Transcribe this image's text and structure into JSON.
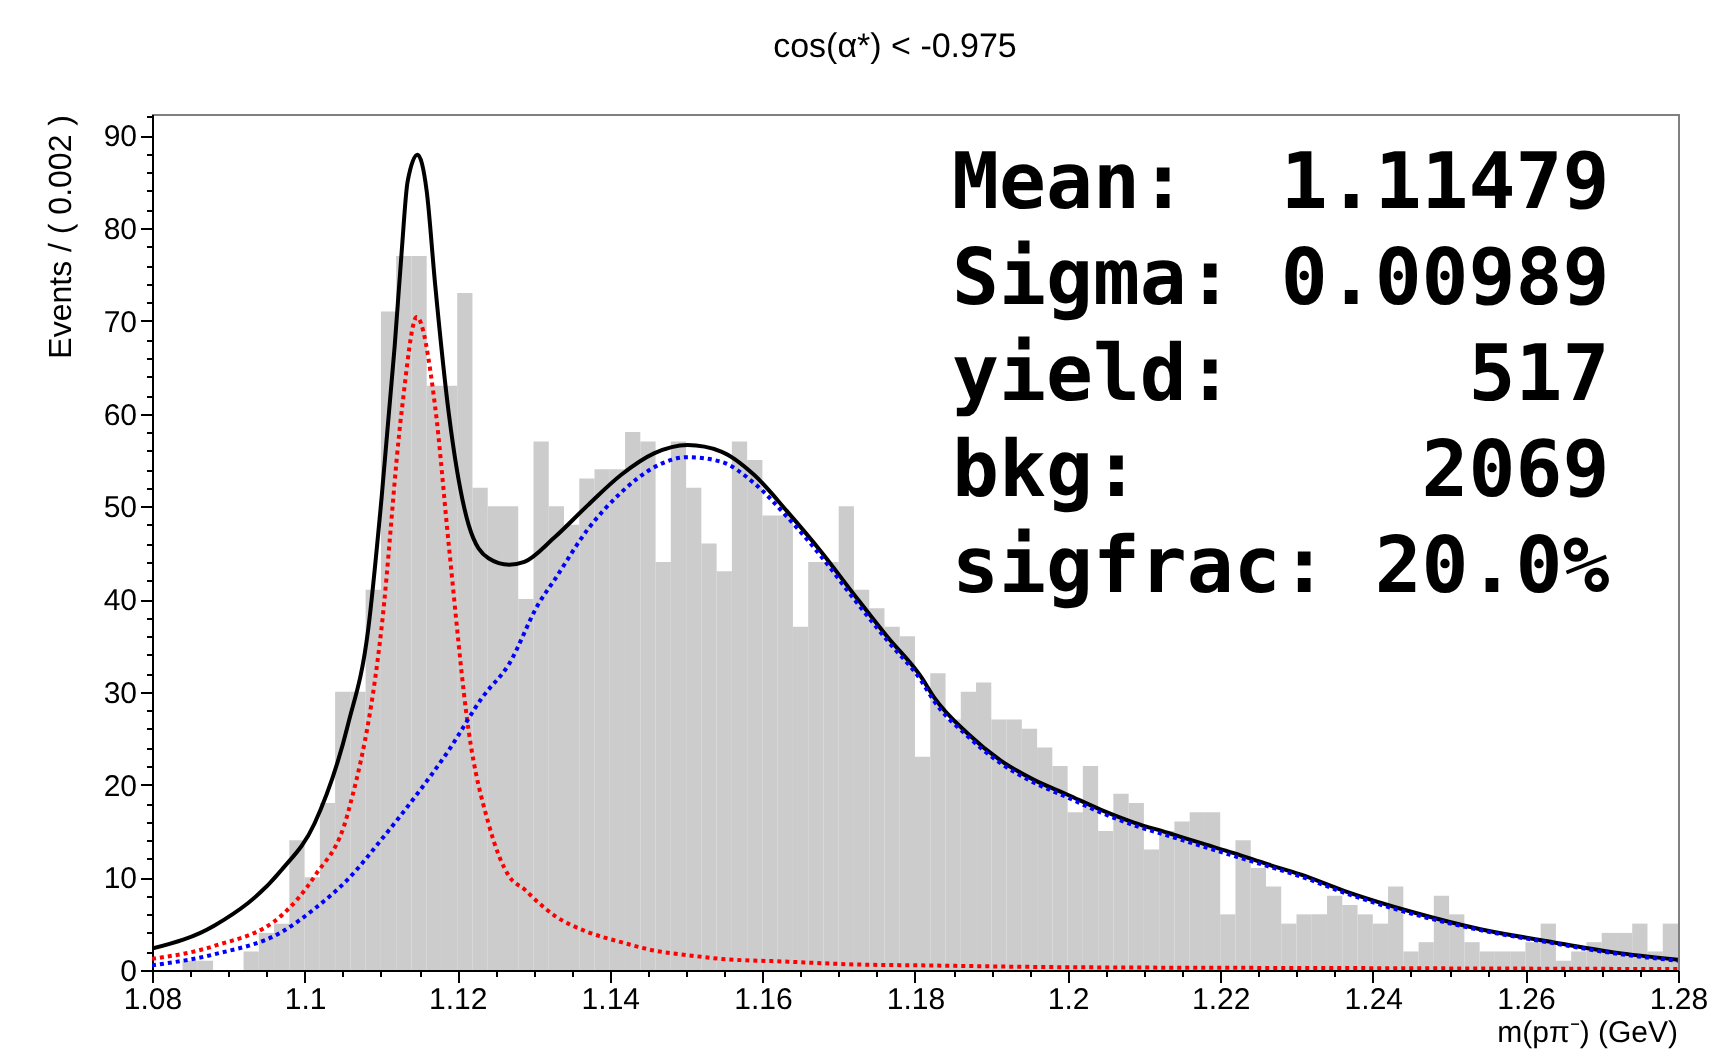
{
  "chart_data": {
    "type": "histogram",
    "title": "cos(α*) < -0.975",
    "xlabel": "m(pπ⁻) (GeV)",
    "ylabel": "Events / ( 0.002 )",
    "annotations": [
      "Mean:  1.11479",
      "Sigma: 0.00989",
      "yield:     517",
      "bkg:      2069",
      "sigfrac: 20.0%"
    ],
    "xlim": [
      1.08,
      1.28
    ],
    "ylim": [
      0,
      92.3
    ],
    "xticks": [
      1.08,
      {
        "value": 1.085,
        "label": null
      },
      {
        "value": 1.09,
        "label": null
      },
      {
        "value": 1.095,
        "label": null
      },
      1.1,
      {
        "value": 1.105,
        "label": null
      },
      {
        "value": 1.11,
        "label": null
      },
      {
        "value": 1.115,
        "label": null
      },
      1.12,
      {
        "value": 1.125,
        "label": null
      },
      {
        "value": 1.13,
        "label": null
      },
      {
        "value": 1.135,
        "label": null
      },
      1.14,
      {
        "value": 1.145,
        "label": null
      },
      {
        "value": 1.15,
        "label": null
      },
      {
        "value": 1.155,
        "label": null
      },
      1.16,
      {
        "value": 1.165,
        "label": null
      },
      {
        "value": 1.17,
        "label": null
      },
      {
        "value": 1.175,
        "label": null
      },
      1.18,
      {
        "value": 1.185,
        "label": null
      },
      {
        "value": 1.19,
        "label": null
      },
      {
        "value": 1.195,
        "label": null
      },
      1.2,
      {
        "value": 1.205,
        "label": null
      },
      {
        "value": 1.21,
        "label": null
      },
      {
        "value": 1.215,
        "label": null
      },
      1.22,
      {
        "value": 1.225,
        "label": null
      },
      {
        "value": 1.23,
        "label": null
      },
      {
        "value": 1.235,
        "label": null
      },
      1.24,
      {
        "value": 1.245,
        "label": null
      },
      {
        "value": 1.25,
        "label": null
      },
      {
        "value": 1.255,
        "label": null
      },
      1.26,
      {
        "value": 1.265,
        "label": null
      },
      {
        "value": 1.27,
        "label": null
      },
      {
        "value": 1.275,
        "label": null
      },
      1.28
    ],
    "yticks": [
      0,
      {
        "value": 2,
        "label": null
      },
      {
        "value": 4,
        "label": null
      },
      {
        "value": 6,
        "label": null
      },
      {
        "value": 8,
        "label": null
      },
      10,
      {
        "value": 12,
        "label": null
      },
      {
        "value": 14,
        "label": null
      },
      {
        "value": 16,
        "label": null
      },
      {
        "value": 18,
        "label": null
      },
      20,
      {
        "value": 22,
        "label": null
      },
      {
        "value": 24,
        "label": null
      },
      {
        "value": 26,
        "label": null
      },
      {
        "value": 28,
        "label": null
      },
      30,
      {
        "value": 32,
        "label": null
      },
      {
        "value": 34,
        "label": null
      },
      {
        "value": 36,
        "label": null
      },
      {
        "value": 38,
        "label": null
      },
      40,
      {
        "value": 42,
        "label": null
      },
      {
        "value": 44,
        "label": null
      },
      {
        "value": 46,
        "label": null
      },
      {
        "value": 48,
        "label": null
      },
      50,
      {
        "value": 52,
        "label": null
      },
      {
        "value": 54,
        "label": null
      },
      {
        "value": 56,
        "label": null
      },
      {
        "value": 58,
        "label": null
      },
      60,
      {
        "value": 62,
        "label": null
      },
      {
        "value": 64,
        "label": null
      },
      {
        "value": 66,
        "label": null
      },
      {
        "value": 68,
        "label": null
      },
      70,
      {
        "value": 72,
        "label": null
      },
      {
        "value": 74,
        "label": null
      },
      {
        "value": 76,
        "label": null
      },
      {
        "value": 78,
        "label": null
      },
      80,
      {
        "value": 82,
        "label": null
      },
      {
        "value": 84,
        "label": null
      },
      {
        "value": 86,
        "label": null
      },
      {
        "value": 88,
        "label": null
      },
      90,
      {
        "value": 92,
        "label": null
      }
    ],
    "color": "#cccccc",
    "bins": [
      1.08,
      1.082,
      1.084,
      1.086,
      1.088,
      1.09,
      1.092,
      1.094,
      1.096,
      1.098,
      1.1,
      1.102,
      1.104,
      1.106,
      1.108,
      1.11,
      1.112,
      1.114,
      1.116,
      1.118,
      1.12,
      1.122,
      1.124,
      1.126,
      1.128,
      1.13,
      1.132,
      1.134,
      1.136,
      1.138,
      1.14,
      1.142,
      1.144,
      1.146,
      1.148,
      1.15,
      1.152,
      1.154,
      1.156,
      1.158,
      1.16,
      1.162,
      1.164,
      1.166,
      1.168,
      1.17,
      1.172,
      1.174,
      1.176,
      1.178,
      1.18,
      1.182,
      1.184,
      1.186,
      1.188,
      1.19,
      1.192,
      1.194,
      1.196,
      1.198,
      1.2,
      1.202,
      1.204,
      1.206,
      1.208,
      1.21,
      1.212,
      1.214,
      1.216,
      1.218,
      1.22,
      1.222,
      1.224,
      1.226,
      1.228,
      1.23,
      1.232,
      1.234,
      1.236,
      1.238,
      1.24,
      1.242,
      1.244,
      1.246,
      1.248,
      1.25,
      1.252,
      1.254,
      1.256,
      1.258,
      1.26,
      1.262,
      1.264,
      1.266,
      1.268,
      1.27,
      1.272,
      1.274,
      1.276,
      1.278,
      1.28
    ],
    "values": [
      0,
      0,
      1,
      1,
      0,
      0,
      2,
      4,
      5,
      14,
      10,
      18,
      30,
      30,
      41,
      71,
      77,
      77,
      63,
      63,
      73,
      52,
      50,
      50,
      40,
      57,
      50,
      48,
      53,
      54,
      54,
      58,
      57,
      44,
      57,
      52,
      46,
      43,
      57,
      55,
      49,
      49,
      37,
      44,
      44,
      50,
      41,
      39,
      37,
      36,
      23,
      32,
      27,
      30,
      31,
      27,
      27,
      26,
      24,
      22,
      17,
      22,
      15,
      19,
      18,
      13,
      15,
      16,
      17,
      17,
      6,
      14,
      11,
      9,
      5,
      6,
      6,
      8,
      7,
      6,
      5,
      9,
      2,
      3,
      8,
      6,
      3,
      2,
      2,
      2,
      3,
      5,
      1,
      2,
      3,
      4,
      4,
      5,
      2,
      5
    ],
    "series": [
      {
        "type": "line",
        "color": "#000000",
        "line_style": "solid",
        "x": [
          1.08,
          1.0882,
          1.097,
          1.1013,
          1.1057,
          1.1083,
          1.1101,
          1.1118,
          1.1127,
          1.1135,
          1.1148,
          1.116,
          1.1171,
          1.1189,
          1.1215,
          1.1241,
          1.1268,
          1.1288,
          1.1327,
          1.1371,
          1.1415,
          1.1458,
          1.1502,
          1.1546,
          1.1589,
          1.1633,
          1.1677,
          1.172,
          1.1764,
          1.1808,
          1.1825,
          1.1869,
          1.1912,
          1.1956,
          1.2,
          1.2043,
          1.2087,
          1.2131,
          1.2174,
          1.2218,
          1.2262,
          1.2305,
          1.2367,
          1.2454,
          1.2541,
          1.2629,
          1.2716,
          1.28
        ],
        "values": [
          2.3,
          4.8,
          10.8,
          15.8,
          26.5,
          36.5,
          51,
          67.2,
          77.2,
          85,
          87.9,
          84,
          74,
          60,
          48,
          44.4,
          43.7,
          44,
          46.6,
          50.1,
          53.4,
          55.7,
          56.6,
          55.9,
          53.4,
          49.4,
          45.1,
          40.5,
          35.9,
          31.6,
          29.4,
          25.5,
          22.6,
          20.5,
          18.9,
          17.3,
          15.9,
          14.8,
          13.7,
          12.6,
          11.4,
          10.3,
          8.4,
          6.2,
          4.4,
          3.1,
          1.9,
          1.1
        ]
      },
      {
        "type": "line",
        "color": "#ff0000",
        "line_style": "dotted",
        "x": [
          1.08,
          1.0882,
          1.097,
          1.1013,
          1.1057,
          1.1101,
          1.1127,
          1.1147,
          1.1171,
          1.1189,
          1.1215,
          1.1241,
          1.1268,
          1.1288,
          1.1306,
          1.1327,
          1.1371,
          1.1415,
          1.1458,
          1.1502,
          1.1546,
          1.1633,
          1.172,
          1.1808,
          1.2,
          1.24,
          1.28
        ],
        "values": [
          1.2,
          2.6,
          5.9,
          10.1,
          17,
          37,
          60.1,
          70.4,
          60.8,
          45.8,
          25.8,
          15.8,
          10.1,
          8.7,
          7.3,
          5.9,
          4.1,
          3.0,
          2.1,
          1.6,
          1.2,
          0.9,
          0.6,
          0.5,
          0.3,
          0.2,
          0.1
        ]
      },
      {
        "type": "line",
        "color": "#0000ff",
        "line_style": "dotted",
        "x": [
          1.08,
          1.0882,
          1.097,
          1.1013,
          1.1057,
          1.1101,
          1.1145,
          1.1189,
          1.1233,
          1.1268,
          1.1306,
          1.1327,
          1.1371,
          1.1415,
          1.1458,
          1.1502,
          1.1546,
          1.1589,
          1.1633,
          1.1677,
          1.172,
          1.1764,
          1.1808,
          1.1825,
          1.1869,
          1.1912,
          1.1956,
          1.2,
          1.2043,
          1.2087,
          1.2131,
          1.2174,
          1.2218,
          1.2262,
          1.2305,
          1.2367,
          1.2454,
          1.2541,
          1.2629,
          1.2716,
          1.28
        ],
        "values": [
          0.5,
          1.7,
          4.1,
          6.6,
          9.8,
          14.1,
          18.7,
          23.7,
          29.4,
          33,
          39.4,
          42,
          47.5,
          51.5,
          54.2,
          55.3,
          54.8,
          52.5,
          48.8,
          44.6,
          40.0,
          35.5,
          31.2,
          29.0,
          25.2,
          22.3,
          20.2,
          18.6,
          17.0,
          15.6,
          14.5,
          13.4,
          12.3,
          11.2,
          10.1,
          8.2,
          6.0,
          4.3,
          3.0,
          1.8,
          1.0
        ]
      }
    ]
  }
}
